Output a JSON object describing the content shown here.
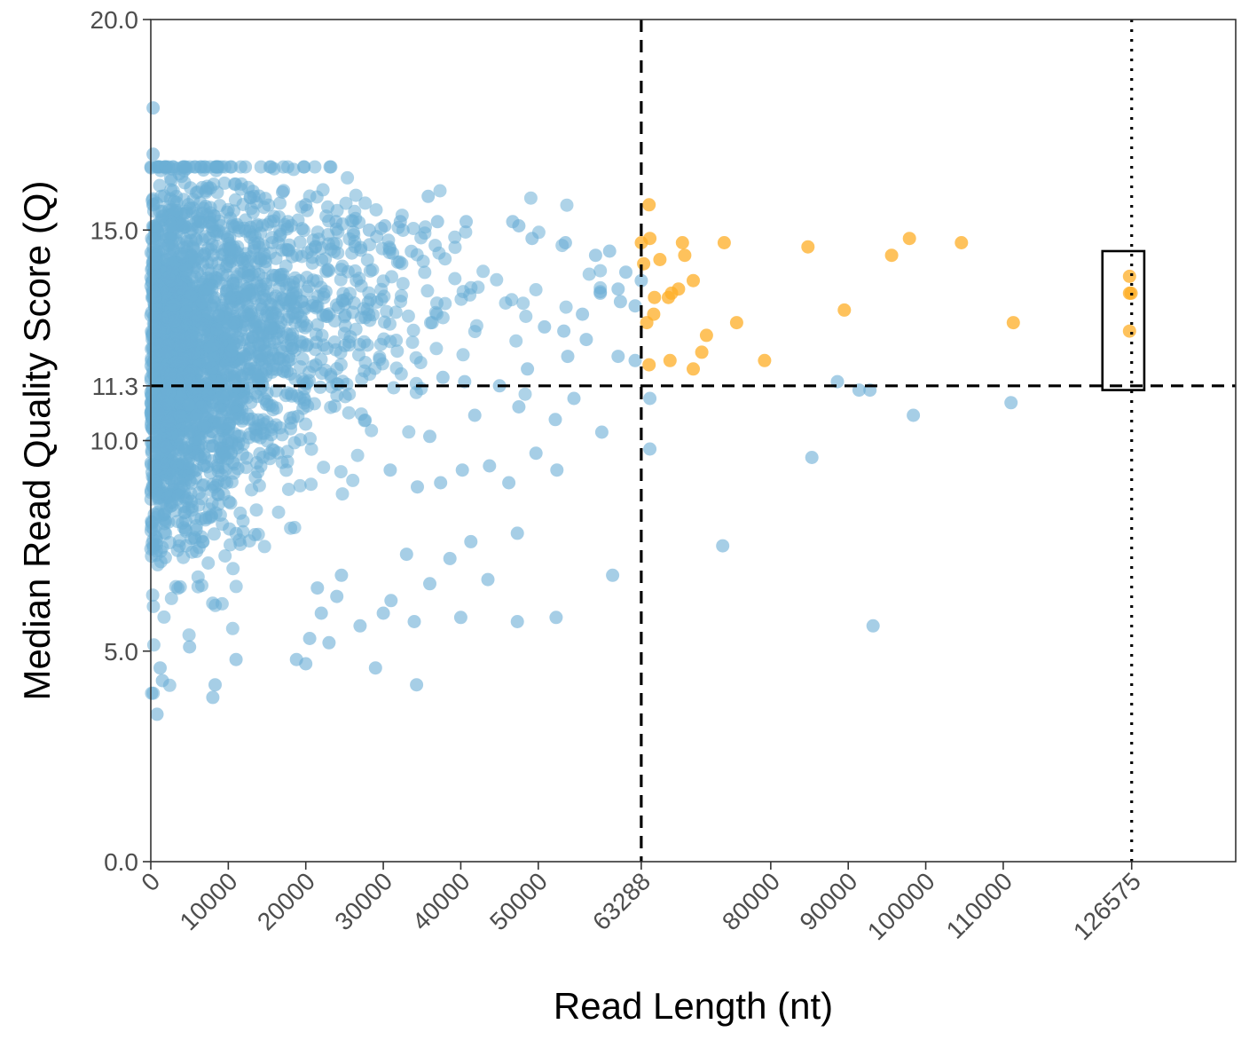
{
  "chart_data": {
    "type": "scatter",
    "xlabel": "Read Length (nt)",
    "ylabel": "Median Read Quality Score (Q)",
    "xlim": [
      0,
      140000
    ],
    "ylim": [
      0,
      20
    ],
    "x_ticks": [
      0,
      10000,
      20000,
      30000,
      40000,
      50000,
      63288,
      80000,
      90000,
      100000,
      110000,
      126575
    ],
    "x_tick_labels": [
      "0",
      "10000",
      "20000",
      "30000",
      "40000",
      "50000",
      "63288",
      "80000",
      "90000",
      "100000",
      "110000",
      "126575"
    ],
    "y_ticks": [
      0,
      5,
      10,
      11.3,
      15,
      20
    ],
    "y_tick_labels": [
      "0.0",
      "5.0",
      "10.0",
      "11.3",
      "15.0",
      "20.0"
    ],
    "grid": false,
    "reference_lines": [
      {
        "axis": "x",
        "value": 63288,
        "style": "dashed"
      },
      {
        "axis": "y",
        "value": 11.3,
        "style": "dashed"
      },
      {
        "axis": "x",
        "value": 126575,
        "style": "dotted"
      }
    ],
    "highlight_box": {
      "x": [
        122800,
        128200
      ],
      "y": [
        11.2,
        14.5
      ]
    },
    "colors": {
      "below_threshold": "#6baed6",
      "above_threshold": "#fdae25"
    },
    "series": [
      {
        "color": "#6baed6",
        "dense_region": {
          "count": 2600,
          "x_max": 58000,
          "y_min": 4,
          "y_max": 16.5
        },
        "points": [
          [
            300,
            17.9
          ],
          [
            300,
            16.8
          ],
          [
            800,
            3.5
          ],
          [
            1500,
            4.3
          ],
          [
            1200,
            4.6
          ],
          [
            5000,
            5.1
          ],
          [
            8300,
            4.2
          ],
          [
            8000,
            3.9
          ],
          [
            11000,
            4.8
          ],
          [
            18800,
            4.8
          ],
          [
            20000,
            4.7
          ],
          [
            20500,
            5.3
          ],
          [
            23000,
            5.2
          ],
          [
            29000,
            4.6
          ],
          [
            34300,
            4.2
          ],
          [
            34000,
            5.7
          ],
          [
            30000,
            5.9
          ],
          [
            27000,
            5.6
          ],
          [
            22000,
            5.9
          ],
          [
            21500,
            6.5
          ],
          [
            24000,
            6.3
          ],
          [
            40000,
            5.8
          ],
          [
            47300,
            5.7
          ],
          [
            52300,
            5.8
          ],
          [
            43500,
            6.7
          ],
          [
            38600,
            7.2
          ],
          [
            33000,
            7.3
          ],
          [
            36000,
            6.6
          ],
          [
            31000,
            6.2
          ],
          [
            24600,
            6.8
          ],
          [
            41300,
            7.6
          ],
          [
            47300,
            7.8
          ],
          [
            59600,
            6.8
          ],
          [
            73800,
            7.5
          ],
          [
            85300,
            9.6
          ],
          [
            93200,
            5.6
          ],
          [
            64400,
            9.8
          ],
          [
            37700,
            11.5
          ],
          [
            40500,
            11.4
          ],
          [
            45000,
            11.3
          ],
          [
            47500,
            10.8
          ],
          [
            54600,
            11.0
          ],
          [
            58200,
            10.2
          ],
          [
            52200,
            10.5
          ],
          [
            49700,
            9.7
          ],
          [
            52400,
            9.3
          ],
          [
            46200,
            9.0
          ],
          [
            40200,
            9.3
          ],
          [
            43700,
            9.4
          ],
          [
            37400,
            9.0
          ],
          [
            34400,
            8.9
          ],
          [
            30900,
            9.3
          ],
          [
            36000,
            10.1
          ],
          [
            41800,
            10.6
          ],
          [
            48600,
            11.7
          ],
          [
            53800,
            12.0
          ],
          [
            56200,
            12.4
          ],
          [
            60300,
            12.0
          ],
          [
            62500,
            11.9
          ],
          [
            60300,
            13.6
          ],
          [
            62500,
            13.2
          ],
          [
            58000,
            13.5
          ],
          [
            55700,
            13.0
          ],
          [
            53300,
            12.6
          ],
          [
            50800,
            12.7
          ],
          [
            63288,
            13.8
          ],
          [
            64400,
            11.0
          ],
          [
            88600,
            11.4
          ],
          [
            91400,
            11.2
          ],
          [
            92800,
            11.2
          ],
          [
            98400,
            10.6
          ],
          [
            111000,
            10.9
          ],
          [
            17000,
            15.9
          ],
          [
            13300,
            15.8
          ],
          [
            20000,
            15.6
          ],
          [
            23900,
            15.2
          ],
          [
            28200,
            15.0
          ],
          [
            30200,
            15.1
          ],
          [
            32200,
            15.2
          ],
          [
            35800,
            15.8
          ],
          [
            37000,
            15.2
          ],
          [
            40700,
            15.2
          ],
          [
            46700,
            15.2
          ],
          [
            47500,
            15.1
          ],
          [
            49200,
            14.8
          ],
          [
            53500,
            14.7
          ],
          [
            57400,
            14.4
          ],
          [
            59200,
            14.5
          ],
          [
            61300,
            14.0
          ],
          [
            60600,
            13.3
          ]
        ]
      },
      {
        "color": "#fdae25",
        "points": [
          [
            63300,
            14.7
          ],
          [
            64300,
            15.6
          ],
          [
            64400,
            14.8
          ],
          [
            63600,
            14.2
          ],
          [
            65700,
            14.3
          ],
          [
            68600,
            14.7
          ],
          [
            68900,
            14.4
          ],
          [
            74000,
            14.7
          ],
          [
            84800,
            14.6
          ],
          [
            95600,
            14.4
          ],
          [
            97900,
            14.8
          ],
          [
            104600,
            14.7
          ],
          [
            70000,
            13.8
          ],
          [
            68100,
            13.6
          ],
          [
            67200,
            13.5
          ],
          [
            66800,
            13.4
          ],
          [
            65000,
            13.4
          ],
          [
            64900,
            13.0
          ],
          [
            64000,
            12.8
          ],
          [
            75600,
            12.8
          ],
          [
            71700,
            12.5
          ],
          [
            71100,
            12.1
          ],
          [
            67000,
            11.9
          ],
          [
            64300,
            11.8
          ],
          [
            70000,
            11.7
          ],
          [
            79200,
            11.9
          ],
          [
            89500,
            13.1
          ],
          [
            111300,
            12.8
          ],
          [
            126300,
            13.9
          ],
          [
            126300,
            13.5
          ],
          [
            126500,
            13.5
          ],
          [
            126300,
            12.6
          ]
        ]
      }
    ]
  }
}
